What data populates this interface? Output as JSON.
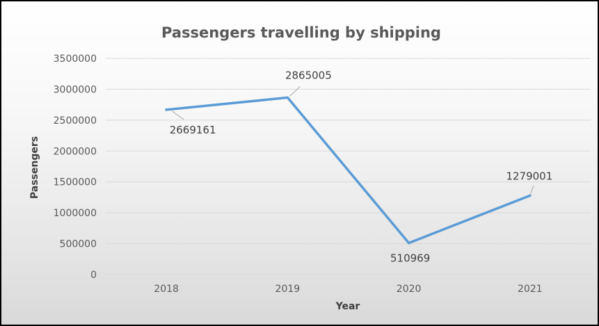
{
  "chart_data": {
    "type": "line",
    "title": "Passengers travelling by shipping",
    "xlabel": "Year",
    "ylabel": "Passengers",
    "categories": [
      "2018",
      "2019",
      "2020",
      "2021"
    ],
    "series": [
      {
        "values": [
          2669161,
          2865005,
          510969,
          1279001
        ],
        "color": "#5b9bd5"
      }
    ],
    "data_labels": [
      "2669161",
      "2865005",
      "510969",
      "1279001"
    ],
    "yticks": [
      "0",
      "500000",
      "1000000",
      "1500000",
      "2000000",
      "2500000",
      "3000000",
      "3500000"
    ],
    "ylim": [
      0,
      3500000
    ],
    "grid": true,
    "legend": "none"
  }
}
